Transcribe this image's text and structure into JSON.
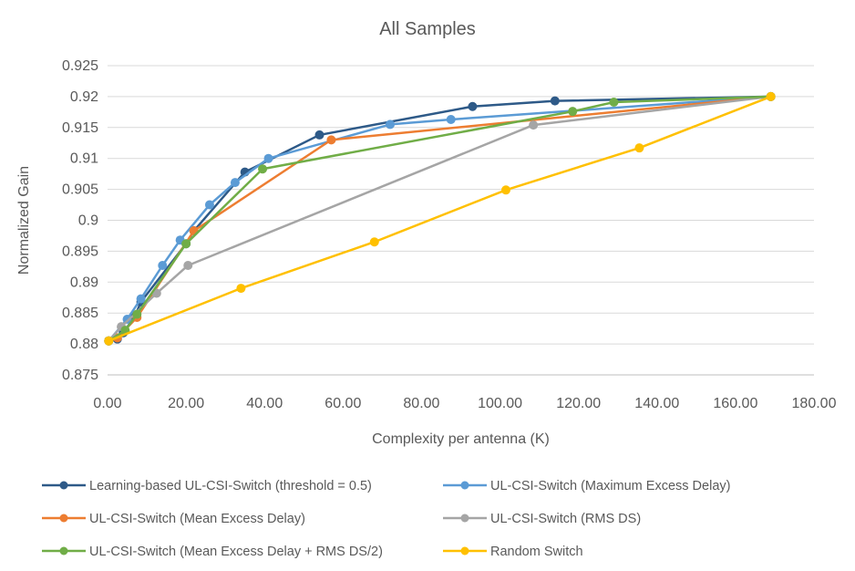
{
  "chart_data": {
    "type": "line",
    "title": "All Samples",
    "xlabel": "Complexity per antenna (K)",
    "ylabel": "Normalized Gain",
    "xlim": [
      0,
      180
    ],
    "ylim": [
      0.875,
      0.925
    ],
    "x_ticks": [
      "0.00",
      "20.00",
      "40.00",
      "60.00",
      "80.00",
      "100.00",
      "120.00",
      "140.00",
      "160.00",
      "180.00"
    ],
    "y_ticks": [
      "0.875",
      "0.88",
      "0.885",
      "0.89",
      "0.895",
      "0.9",
      "0.905",
      "0.91",
      "0.915",
      "0.92",
      "0.925"
    ],
    "grid": "horizontal",
    "legend_position": "bottom",
    "series": [
      {
        "name": "Learning-based UL-CSI-Switch (threshold = 0.5)",
        "color": "#2E5A88",
        "points": [
          [
            0.3,
            0.8805
          ],
          [
            2.5,
            0.8808
          ],
          [
            4,
            0.8818
          ],
          [
            7,
            0.8845
          ],
          [
            8.5,
            0.8868
          ],
          [
            20,
            0.8962
          ],
          [
            22,
            0.8983
          ],
          [
            35,
            0.9078
          ],
          [
            54,
            0.9138
          ],
          [
            93,
            0.9184
          ],
          [
            114,
            0.9193
          ],
          [
            169,
            0.92
          ]
        ]
      },
      {
        "name": "UL-CSI-Switch (Maximum Excess Delay)",
        "color": "#5B9BD5",
        "points": [
          [
            0.3,
            0.8805
          ],
          [
            5,
            0.884
          ],
          [
            8.5,
            0.8873
          ],
          [
            14,
            0.8927
          ],
          [
            18.5,
            0.8968
          ],
          [
            26,
            0.9025
          ],
          [
            32.5,
            0.9061
          ],
          [
            41,
            0.91
          ],
          [
            72,
            0.9155
          ],
          [
            87.5,
            0.9163
          ],
          [
            169,
            0.92
          ]
        ]
      },
      {
        "name": "UL-CSI-Switch (Mean Excess Delay)",
        "color": "#ED7D31",
        "points": [
          [
            0.3,
            0.8805
          ],
          [
            2.5,
            0.881
          ],
          [
            7.5,
            0.8843
          ],
          [
            22,
            0.8983
          ],
          [
            57,
            0.913
          ],
          [
            169,
            0.92
          ]
        ]
      },
      {
        "name": "UL-CSI-Switch (RMS DS)",
        "color": "#A5A5A5",
        "points": [
          [
            0.3,
            0.8805
          ],
          [
            3.5,
            0.8828
          ],
          [
            12.5,
            0.8882
          ],
          [
            20.5,
            0.8927
          ],
          [
            108.5,
            0.9154
          ],
          [
            169,
            0.92
          ]
        ]
      },
      {
        "name": "UL-CSI-Switch (Mean Excess Delay + RMS DS/2)",
        "color": "#70AD47",
        "points": [
          [
            0.3,
            0.8805
          ],
          [
            4.5,
            0.8822
          ],
          [
            7.5,
            0.8848
          ],
          [
            20,
            0.8962
          ],
          [
            39.5,
            0.9083
          ],
          [
            118.5,
            0.9176
          ],
          [
            129,
            0.9191
          ],
          [
            169,
            0.92
          ]
        ]
      },
      {
        "name": "Random Switch",
        "color": "#FFC000",
        "points": [
          [
            0.3,
            0.8805
          ],
          [
            34,
            0.889
          ],
          [
            68,
            0.8965
          ],
          [
            101.5,
            0.9049
          ],
          [
            135.5,
            0.9117
          ],
          [
            169,
            0.92
          ]
        ]
      }
    ]
  }
}
